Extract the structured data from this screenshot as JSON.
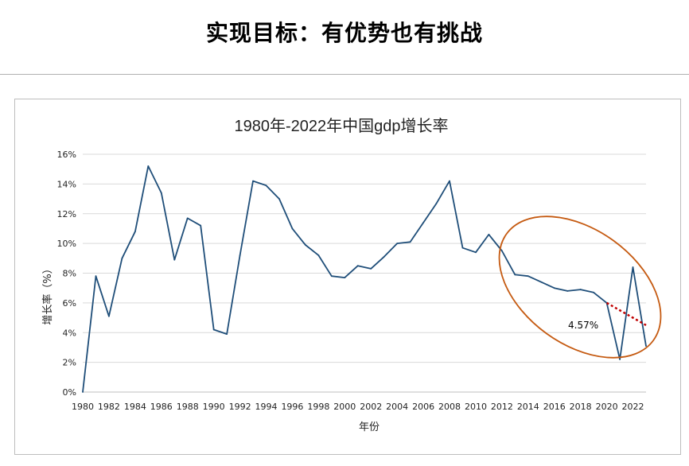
{
  "slide": {
    "title": "实现目标：有优势也有挑战"
  },
  "chart_data": {
    "type": "line",
    "title": "1980年-2022年中国gdp增长率",
    "xlabel": "年份",
    "ylabel": "增长率（%）",
    "ylim": [
      0,
      16
    ],
    "yticks": [
      "0%",
      "2%",
      "4%",
      "6%",
      "8%",
      "10%",
      "12%",
      "14%",
      "16%"
    ],
    "x_tick_labels": [
      "1980",
      "1982",
      "1984",
      "1986",
      "1988",
      "1990",
      "1992",
      "1994",
      "1996",
      "1998",
      "2000",
      "2002",
      "2004",
      "2006",
      "2008",
      "2010",
      "2012",
      "2014",
      "2016",
      "2018",
      "2020",
      "2022"
    ],
    "grid": true,
    "series": [
      {
        "color": "#1f4e79",
        "x": [
          1980,
          1981,
          1982,
          1983,
          1984,
          1985,
          1986,
          1987,
          1988,
          1989,
          1990,
          1991,
          1992,
          1993,
          1994,
          1995,
          1996,
          1997,
          1998,
          1999,
          2000,
          2001,
          2002,
          2003,
          2004,
          2005,
          2006,
          2007,
          2008,
          2009,
          2010,
          2011,
          2012,
          2013,
          2014,
          2015,
          2016,
          2017,
          2018,
          2019,
          2020,
          2021,
          2022,
          2023
        ],
        "values": [
          0,
          7.8,
          5.1,
          9.0,
          10.8,
          15.2,
          13.4,
          8.9,
          11.7,
          11.2,
          4.2,
          3.9,
          9.2,
          14.2,
          13.9,
          13.0,
          11.0,
          9.9,
          9.2,
          7.8,
          7.7,
          8.5,
          8.3,
          9.1,
          10.0,
          10.1,
          11.4,
          12.7,
          14.2,
          9.7,
          9.4,
          10.6,
          9.5,
          7.9,
          7.8,
          7.4,
          7.0,
          6.8,
          6.9,
          6.7,
          6.0,
          2.2,
          8.4,
          3.1
        ]
      }
    ],
    "annotation": {
      "text": "4.57%",
      "trend_color": "#c00000",
      "ellipse_color": "#c55a11"
    }
  }
}
